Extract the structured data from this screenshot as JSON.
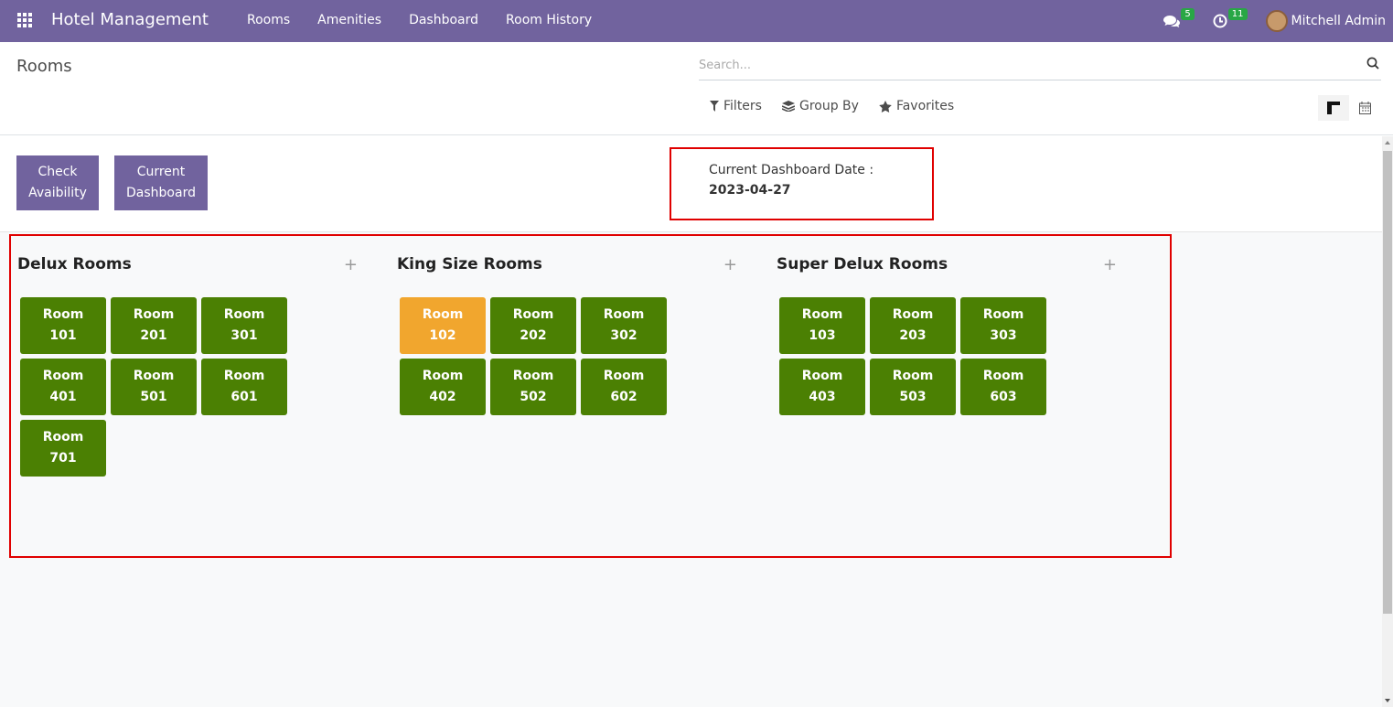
{
  "navbar": {
    "brand": "Hotel Management",
    "menu": [
      "Rooms",
      "Amenities",
      "Dashboard",
      "Room History"
    ],
    "messages_count": "5",
    "activities_count": "11",
    "user": "Mitchell Admin"
  },
  "control_panel": {
    "breadcrumb": "Rooms",
    "search_placeholder": "Search...",
    "filters_label": "Filters",
    "group_by_label": "Group By",
    "favorites_label": "Favorites"
  },
  "buttons": {
    "check_line1": "Check",
    "check_line2": "Avaibility",
    "dashboard_line1": "Current",
    "dashboard_line2": "Dashboard"
  },
  "dashboard_date": {
    "label": "Current Dashboard Date :",
    "value": "2023-04-27"
  },
  "columns": [
    {
      "title": "Delux Rooms",
      "rooms": [
        {
          "label": "Room",
          "number": "101",
          "status": "available"
        },
        {
          "label": "Room",
          "number": "201",
          "status": "available"
        },
        {
          "label": "Room",
          "number": "301",
          "status": "available"
        },
        {
          "label": "Room",
          "number": "401",
          "status": "available"
        },
        {
          "label": "Room",
          "number": "501",
          "status": "available"
        },
        {
          "label": "Room",
          "number": "601",
          "status": "available"
        },
        {
          "label": "Room",
          "number": "701",
          "status": "available"
        }
      ]
    },
    {
      "title": "King Size Rooms",
      "rooms": [
        {
          "label": "Room",
          "number": "102",
          "status": "occupied"
        },
        {
          "label": "Room",
          "number": "202",
          "status": "available"
        },
        {
          "label": "Room",
          "number": "302",
          "status": "available"
        },
        {
          "label": "Room",
          "number": "402",
          "status": "available"
        },
        {
          "label": "Room",
          "number": "502",
          "status": "available"
        },
        {
          "label": "Room",
          "number": "602",
          "status": "available"
        }
      ]
    },
    {
      "title": "Super Delux Rooms",
      "rooms": [
        {
          "label": "Room",
          "number": "103",
          "status": "available"
        },
        {
          "label": "Room",
          "number": "203",
          "status": "available"
        },
        {
          "label": "Room",
          "number": "303",
          "status": "available"
        },
        {
          "label": "Room",
          "number": "403",
          "status": "available"
        },
        {
          "label": "Room",
          "number": "503",
          "status": "available"
        },
        {
          "label": "Room",
          "number": "603",
          "status": "available"
        }
      ]
    }
  ],
  "colors": {
    "navbar": "#71639e",
    "room_available": "#4b8003",
    "room_occupied": "#f1a62e",
    "highlight": "#e00000"
  }
}
